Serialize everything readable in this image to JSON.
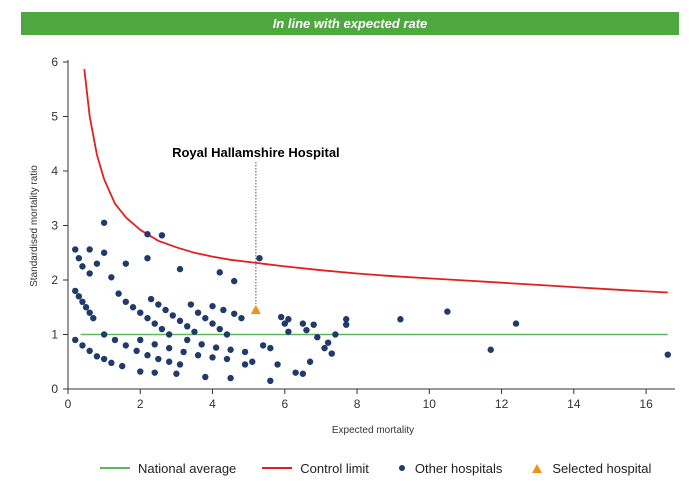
{
  "banner": {
    "text": "In line with expected rate",
    "color": "#4ea83f"
  },
  "chart_data": {
    "type": "scatter",
    "xlabel": "Expected mortality",
    "ylabel": "Standardised mortality ratio",
    "xlim": [
      0,
      16.8
    ],
    "ylim": [
      0,
      6
    ],
    "xticks": [
      0,
      2,
      4,
      6,
      8,
      10,
      12,
      14,
      16
    ],
    "yticks": [
      0,
      1,
      2,
      3,
      4,
      5,
      6
    ],
    "grid": false,
    "legend_position": "bottom",
    "annotation": {
      "text": "Royal Hallamshire Hospital",
      "x": 5.2,
      "y": 1.45
    },
    "national_average": {
      "name": "National average",
      "y": 1.0,
      "x_range": [
        0.35,
        16.6
      ],
      "color": "#5cb85c"
    },
    "control_limit": {
      "name": "Control limit",
      "color": "#e02020",
      "points": [
        [
          0.45,
          5.87
        ],
        [
          0.6,
          5.0
        ],
        [
          0.8,
          4.3
        ],
        [
          1.0,
          3.85
        ],
        [
          1.3,
          3.4
        ],
        [
          1.6,
          3.15
        ],
        [
          2.0,
          2.92
        ],
        [
          2.5,
          2.72
        ],
        [
          3.0,
          2.6
        ],
        [
          3.5,
          2.5
        ],
        [
          4.0,
          2.43
        ],
        [
          4.5,
          2.37
        ],
        [
          5.0,
          2.33
        ],
        [
          5.5,
          2.29
        ],
        [
          6.0,
          2.25
        ],
        [
          7.0,
          2.18
        ],
        [
          8.0,
          2.12
        ],
        [
          9.0,
          2.07
        ],
        [
          10.0,
          2.03
        ],
        [
          11.0,
          1.99
        ],
        [
          12.0,
          1.95
        ],
        [
          13.0,
          1.91
        ],
        [
          14.0,
          1.87
        ],
        [
          15.0,
          1.83
        ],
        [
          16.0,
          1.79
        ],
        [
          16.6,
          1.77
        ]
      ]
    },
    "series": [
      {
        "name": "Other hospitals",
        "marker": "circle",
        "color": "#1f3a6b",
        "points": [
          [
            0.2,
            2.56
          ],
          [
            0.3,
            2.4
          ],
          [
            0.4,
            2.25
          ],
          [
            0.6,
            2.56
          ],
          [
            0.6,
            2.12
          ],
          [
            0.8,
            2.3
          ],
          [
            1.0,
            3.05
          ],
          [
            1.0,
            2.5
          ],
          [
            1.2,
            2.05
          ],
          [
            1.6,
            2.3
          ],
          [
            2.2,
            2.84
          ],
          [
            2.6,
            2.82
          ],
          [
            2.2,
            2.4
          ],
          [
            3.1,
            2.2
          ],
          [
            4.2,
            2.14
          ],
          [
            4.6,
            1.98
          ],
          [
            5.3,
            2.4
          ],
          [
            0.2,
            1.8
          ],
          [
            0.3,
            1.7
          ],
          [
            0.4,
            1.6
          ],
          [
            0.5,
            1.5
          ],
          [
            0.6,
            1.4
          ],
          [
            0.7,
            1.3
          ],
          [
            1.4,
            1.75
          ],
          [
            1.6,
            1.6
          ],
          [
            1.8,
            1.5
          ],
          [
            2.0,
            1.4
          ],
          [
            2.2,
            1.3
          ],
          [
            2.4,
            1.2
          ],
          [
            2.6,
            1.1
          ],
          [
            2.8,
            1.0
          ],
          [
            2.3,
            1.65
          ],
          [
            2.5,
            1.55
          ],
          [
            2.7,
            1.45
          ],
          [
            2.9,
            1.35
          ],
          [
            3.1,
            1.25
          ],
          [
            3.3,
            1.15
          ],
          [
            3.5,
            1.05
          ],
          [
            3.4,
            1.55
          ],
          [
            3.6,
            1.4
          ],
          [
            3.8,
            1.3
          ],
          [
            4.0,
            1.2
          ],
          [
            4.2,
            1.1
          ],
          [
            4.4,
            1.0
          ],
          [
            4.0,
            1.52
          ],
          [
            4.3,
            1.45
          ],
          [
            4.6,
            1.38
          ],
          [
            4.8,
            1.3
          ],
          [
            0.2,
            0.9
          ],
          [
            0.4,
            0.8
          ],
          [
            0.6,
            0.7
          ],
          [
            0.8,
            0.6
          ],
          [
            1.0,
            0.55
          ],
          [
            1.2,
            0.48
          ],
          [
            1.5,
            0.42
          ],
          [
            1.0,
            1.0
          ],
          [
            1.3,
            0.9
          ],
          [
            1.6,
            0.8
          ],
          [
            1.9,
            0.7
          ],
          [
            2.2,
            0.62
          ],
          [
            2.5,
            0.55
          ],
          [
            2.8,
            0.5
          ],
          [
            3.1,
            0.45
          ],
          [
            2.0,
            0.9
          ],
          [
            2.4,
            0.82
          ],
          [
            2.8,
            0.75
          ],
          [
            3.2,
            0.68
          ],
          [
            3.6,
            0.62
          ],
          [
            4.0,
            0.58
          ],
          [
            4.4,
            0.55
          ],
          [
            3.3,
            0.9
          ],
          [
            3.7,
            0.82
          ],
          [
            4.1,
            0.76
          ],
          [
            4.5,
            0.72
          ],
          [
            4.9,
            0.68
          ],
          [
            2.0,
            0.32
          ],
          [
            2.4,
            0.3
          ],
          [
            3.0,
            0.28
          ],
          [
            3.8,
            0.22
          ],
          [
            4.5,
            0.2
          ],
          [
            4.9,
            0.45
          ],
          [
            5.1,
            0.5
          ],
          [
            5.6,
            0.15
          ],
          [
            5.4,
            0.8
          ],
          [
            5.6,
            0.75
          ],
          [
            5.8,
            0.45
          ],
          [
            5.9,
            1.32
          ],
          [
            6.0,
            1.2
          ],
          [
            6.1,
            1.28
          ],
          [
            6.1,
            1.05
          ],
          [
            6.3,
            0.3
          ],
          [
            6.5,
            0.28
          ],
          [
            6.5,
            1.2
          ],
          [
            6.6,
            1.08
          ],
          [
            6.7,
            0.5
          ],
          [
            6.8,
            1.18
          ],
          [
            6.9,
            0.95
          ],
          [
            7.1,
            0.75
          ],
          [
            7.2,
            0.85
          ],
          [
            7.3,
            0.65
          ],
          [
            7.4,
            1.0
          ],
          [
            7.7,
            1.18
          ],
          [
            7.7,
            1.28
          ],
          [
            9.2,
            1.28
          ],
          [
            10.5,
            1.42
          ],
          [
            11.7,
            0.72
          ],
          [
            12.4,
            1.2
          ],
          [
            16.6,
            0.63
          ]
        ]
      },
      {
        "name": "Selected hospital",
        "marker": "triangle",
        "color": "#f0901e",
        "points": [
          [
            5.2,
            1.45
          ]
        ]
      }
    ]
  }
}
